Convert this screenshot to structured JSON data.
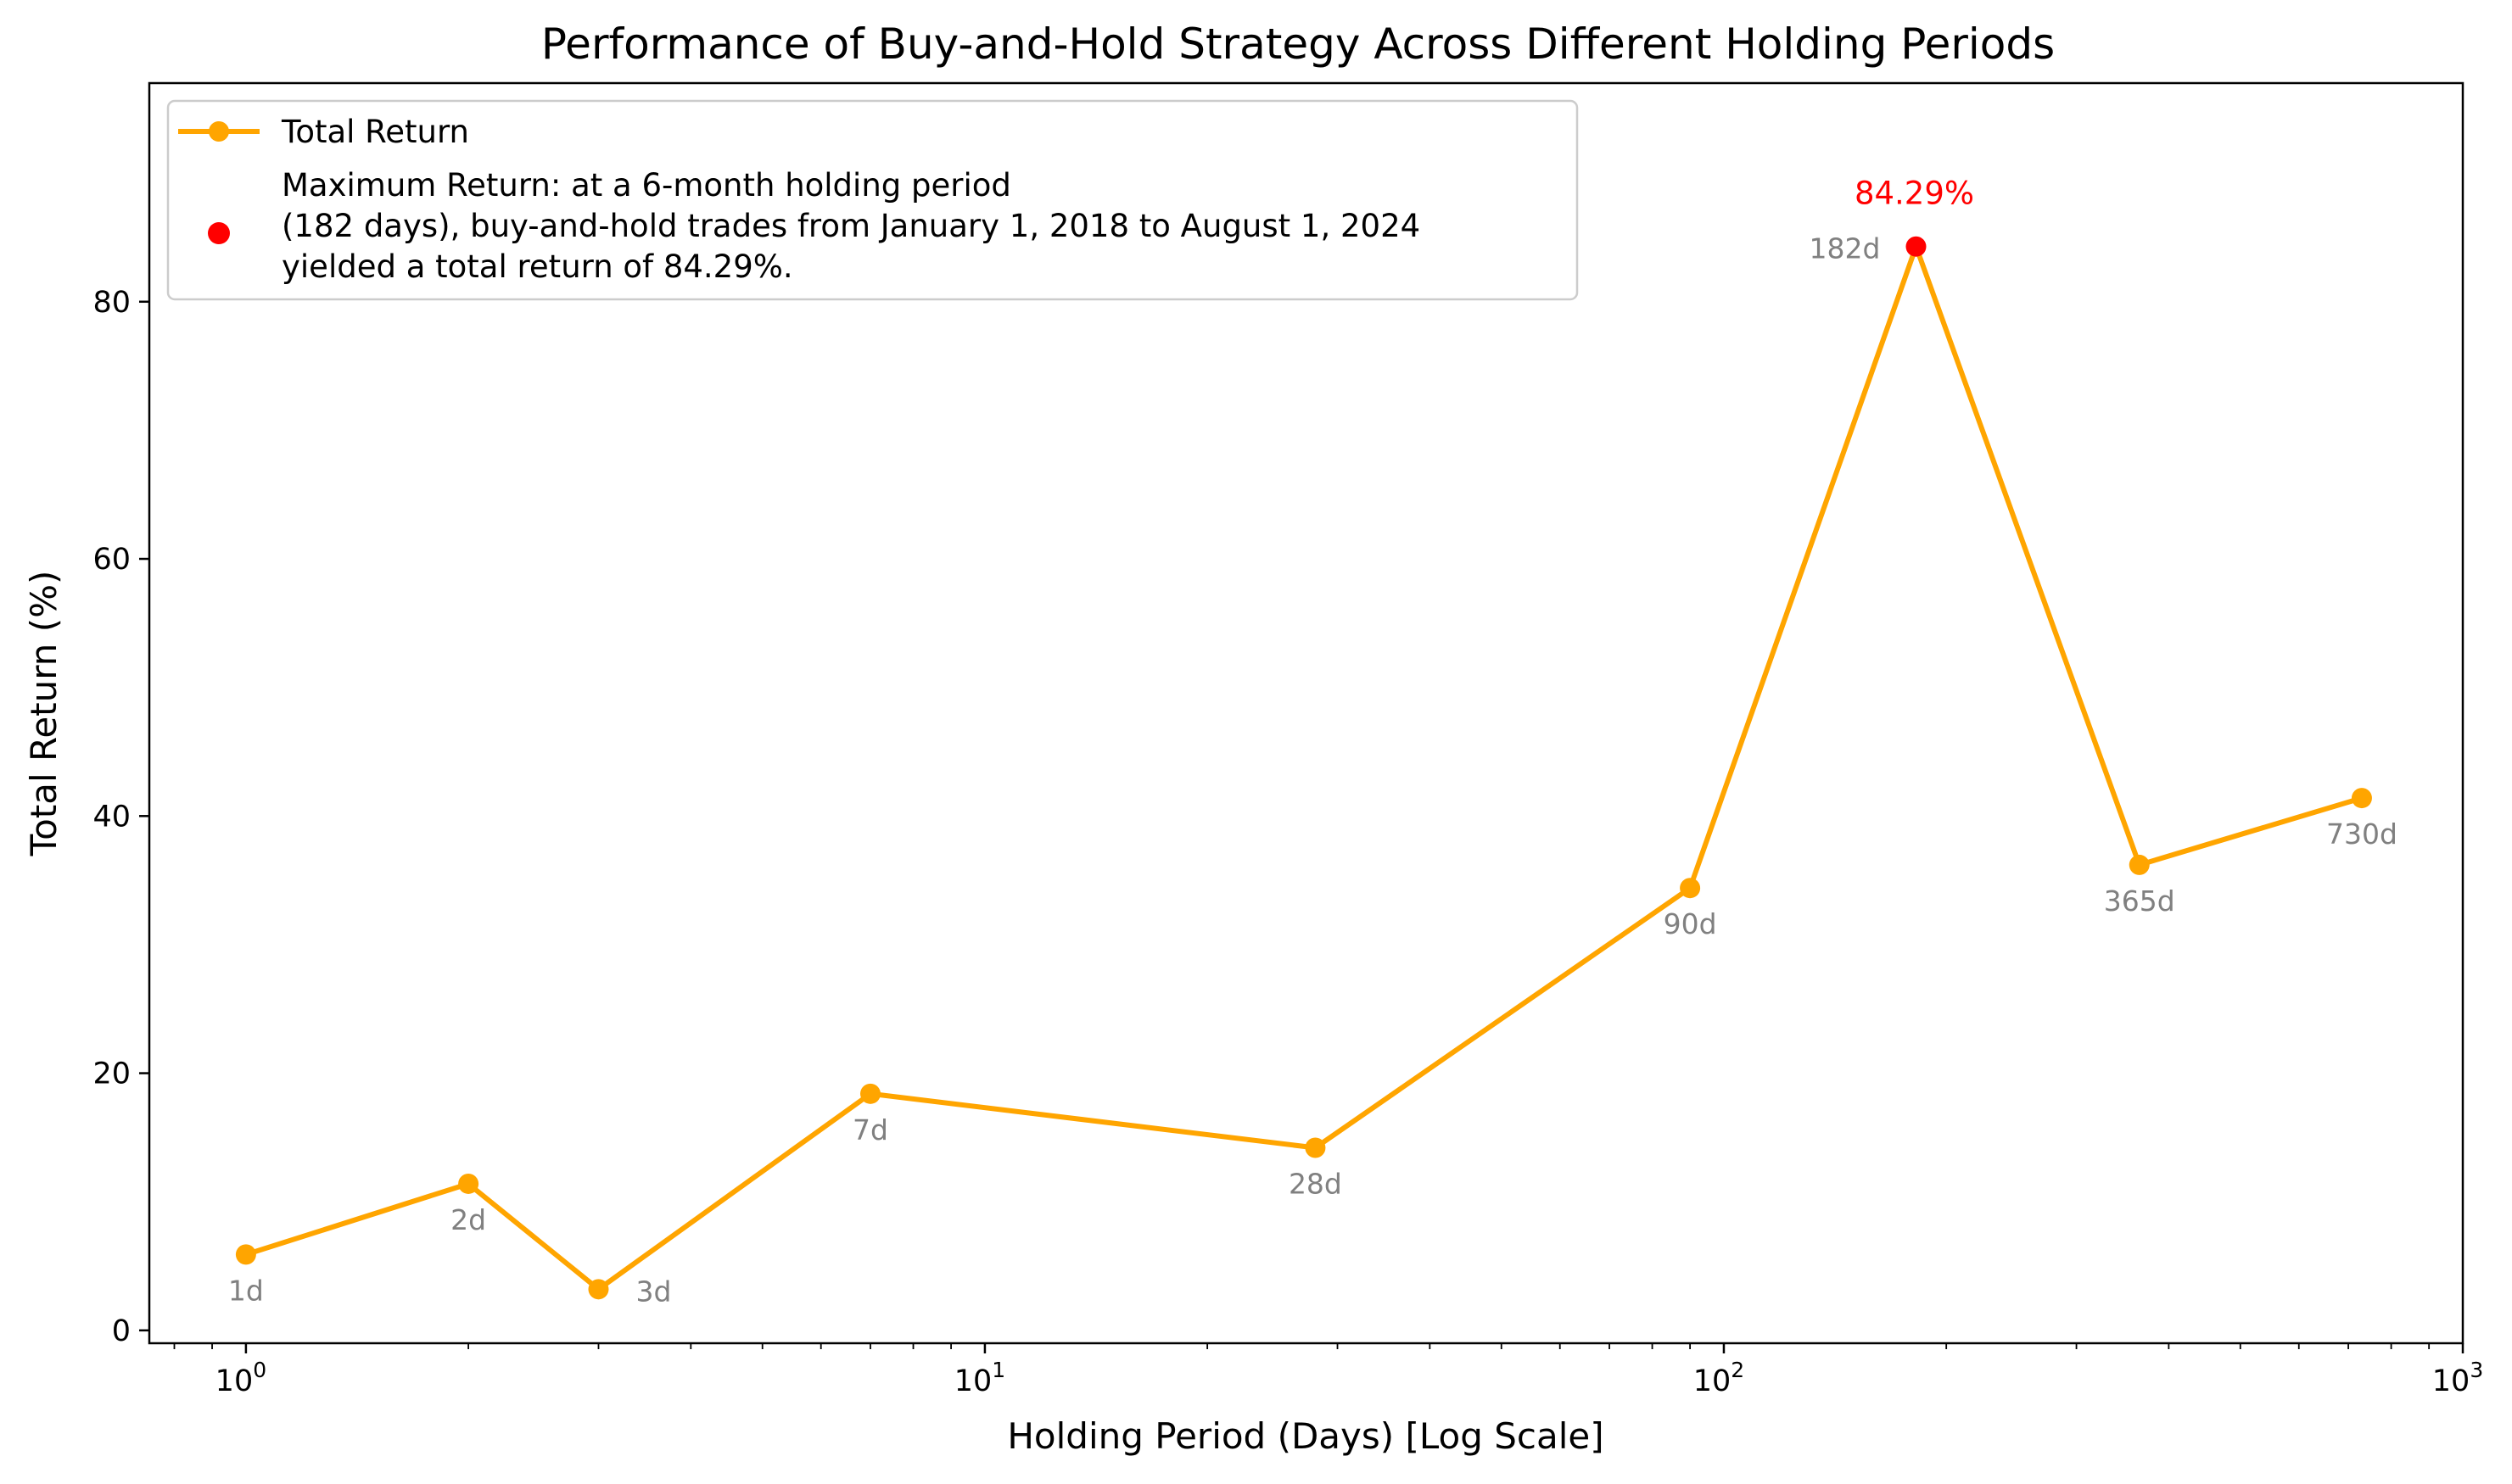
{
  "chart_data": {
    "type": "line",
    "title": "Performance of Buy-and-Hold Strategy Across Different Holding Periods",
    "xlabel": "Holding Period (Days) [Log Scale]",
    "ylabel": "Total Return (%)",
    "xscale": "log",
    "xlim": [
      0.74,
      1000
    ],
    "ylim": [
      -1,
      97
    ],
    "grid": false,
    "legend_position": "top-left",
    "x_ticks": [
      {
        "value": 1,
        "base": "10",
        "exp": "0"
      },
      {
        "value": 10,
        "base": "10",
        "exp": "1"
      },
      {
        "value": 100,
        "base": "10",
        "exp": "2"
      },
      {
        "value": 1000,
        "base": "10",
        "exp": "3"
      }
    ],
    "y_ticks": [
      0,
      20,
      40,
      60,
      80
    ],
    "series": [
      {
        "name": "Total Return",
        "color": "#ffa500",
        "points": [
          {
            "x": 1,
            "y": 5.9,
            "label": "1d"
          },
          {
            "x": 2,
            "y": 11.4,
            "label": "2d"
          },
          {
            "x": 3,
            "y": 3.2,
            "label": "3d"
          },
          {
            "x": 7,
            "y": 18.4,
            "label": "7d"
          },
          {
            "x": 28,
            "y": 14.2,
            "label": "28d"
          },
          {
            "x": 90,
            "y": 34.4,
            "label": "90d"
          },
          {
            "x": 182,
            "y": 84.29,
            "label": "182d"
          },
          {
            "x": 365,
            "y": 36.2,
            "label": "365d"
          },
          {
            "x": 730,
            "y": 41.4,
            "label": "730d"
          }
        ]
      }
    ],
    "max_point": {
      "x": 182,
      "y": 84.29,
      "color": "#ff0000",
      "label": "84.29%",
      "legend_lines": [
        "Maximum Return: at a 6-month holding period",
        "(182 days), buy-and-hold trades from January 1, 2018 to August 1, 2024",
        "yielded a total return of 84.29%."
      ]
    }
  }
}
